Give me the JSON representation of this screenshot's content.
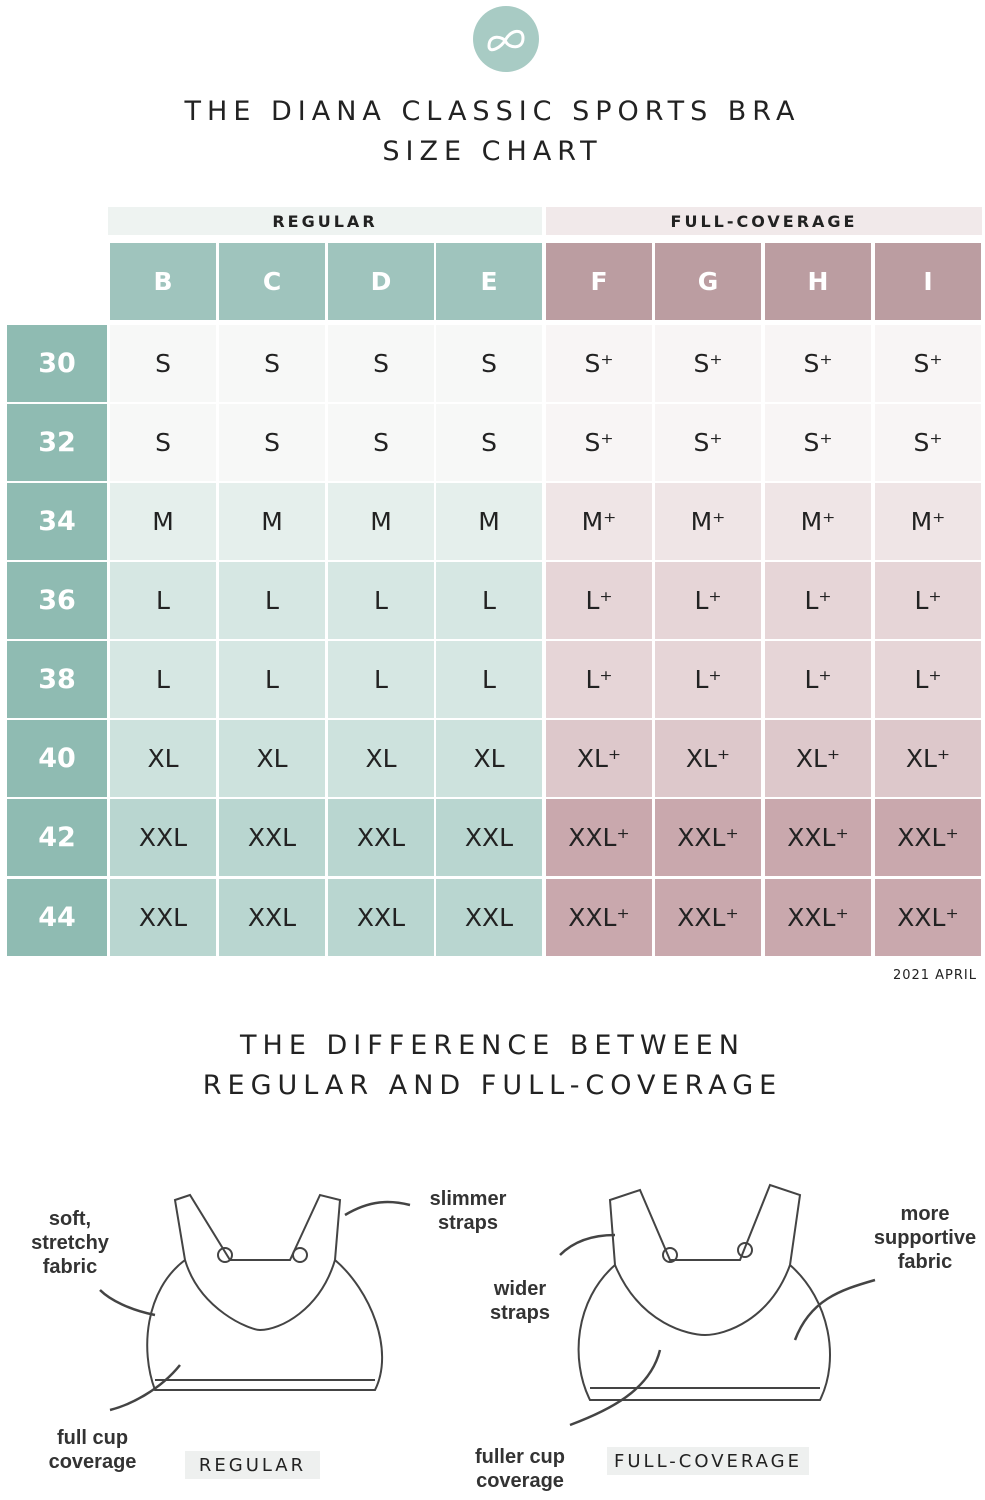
{
  "header": {
    "title": [
      "THE DIANA CLASSIC SPORTS BRA",
      "SIZE CHART"
    ]
  },
  "table": {
    "groups": [
      "REGULAR",
      "FULL-COVERAGE"
    ],
    "columns": [
      "B",
      "C",
      "D",
      "E",
      "F",
      "G",
      "H",
      "I"
    ],
    "rows": [
      {
        "band": "30",
        "sizes": [
          "S",
          "S",
          "S",
          "S",
          "S⁺",
          "S⁺",
          "S⁺",
          "S⁺"
        ]
      },
      {
        "band": "32",
        "sizes": [
          "S",
          "S",
          "S",
          "S",
          "S⁺",
          "S⁺",
          "S⁺",
          "S⁺"
        ]
      },
      {
        "band": "34",
        "sizes": [
          "M",
          "M",
          "M",
          "M",
          "M⁺",
          "M⁺",
          "M⁺",
          "M⁺"
        ]
      },
      {
        "band": "36",
        "sizes": [
          "L",
          "L",
          "L",
          "L",
          "L⁺",
          "L⁺",
          "L⁺",
          "L⁺"
        ]
      },
      {
        "band": "38",
        "sizes": [
          "L",
          "L",
          "L",
          "L",
          "L⁺",
          "L⁺",
          "L⁺",
          "L⁺"
        ]
      },
      {
        "band": "40",
        "sizes": [
          "XL",
          "XL",
          "XL",
          "XL",
          "XL⁺",
          "XL⁺",
          "XL⁺",
          "XL⁺"
        ]
      },
      {
        "band": "42",
        "sizes": [
          "XXL",
          "XXL",
          "XXL",
          "XXL",
          "XXL⁺",
          "XXL⁺",
          "XXL⁺",
          "XXL⁺"
        ]
      },
      {
        "band": "44",
        "sizes": [
          "XXL",
          "XXL",
          "XXL",
          "XXL",
          "XXL⁺",
          "XXL⁺",
          "XXL⁺",
          "XXL⁺"
        ]
      }
    ],
    "date": "2021 APRIL"
  },
  "difference": {
    "title": [
      "THE DIFFERENCE BETWEEN",
      "REGULAR AND FULL-COVERAGE"
    ],
    "regular": {
      "name": "REGULAR",
      "fabric": [
        "soft,",
        "stretchy",
        "fabric"
      ],
      "straps": [
        "slimmer",
        "straps"
      ],
      "cup": [
        "full cup",
        "coverage"
      ]
    },
    "full": {
      "name": "FULL-COVERAGE",
      "straps": [
        "wider",
        "straps"
      ],
      "fabric": [
        "more",
        "supportive",
        "fabric"
      ],
      "cup": [
        "fuller cup",
        "coverage"
      ]
    }
  }
}
